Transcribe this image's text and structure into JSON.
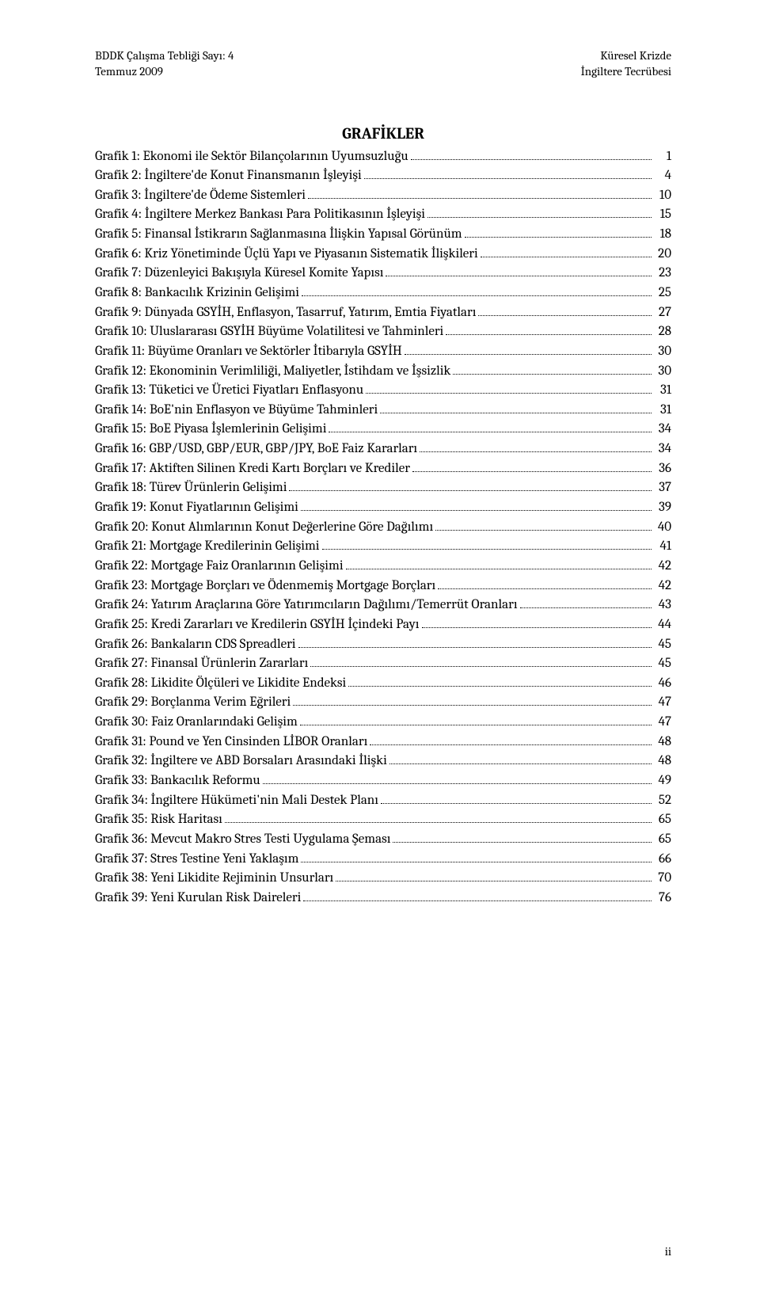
{
  "header": {
    "left_line1": "BDDK Çalışma Tebliği Sayı: 4",
    "left_line2": "Temmuz 2009",
    "right_line1": "Küresel Krizde",
    "right_line2": "İngiltere Tecrübesi"
  },
  "title": "GRAFİKLER",
  "entries": [
    {
      "label": "Grafik 1: Ekonomi ile Sektör Bilançolarının Uyumsuzluğu",
      "page": "1"
    },
    {
      "label": "Grafik 2: İngiltere'de Konut Finansmanın İşleyişi",
      "page": "4"
    },
    {
      "label": "Grafik 3: İngiltere'de Ödeme Sistemleri",
      "page": "10"
    },
    {
      "label": "Grafik 4: İngiltere Merkez Bankası Para Politikasının İşleyişi",
      "page": "15"
    },
    {
      "label": "Grafik 5: Finansal İstikrarın Sağlanmasına İlişkin Yapısal Görünüm",
      "page": "18"
    },
    {
      "label": "Grafik 6: Kriz Yönetiminde Üçlü Yapı ve Piyasanın Sistematik İlişkileri",
      "page": "20"
    },
    {
      "label": "Grafik 7: Düzenleyici Bakışıyla Küresel Komite Yapısı",
      "page": "23"
    },
    {
      "label": "Grafik 8: Bankacılık Krizinin Gelişimi",
      "page": "25"
    },
    {
      "label": "Grafik 9: Dünyada GSYİH, Enflasyon, Tasarruf, Yatırım, Emtia Fiyatları",
      "page": "27"
    },
    {
      "label": "Grafik 10: Uluslararası GSYİH Büyüme Volatilitesi ve Tahminleri",
      "page": "28"
    },
    {
      "label": "Grafik 11: Büyüme Oranları ve Sektörler İtibarıyla GSYİH",
      "page": "30"
    },
    {
      "label": "Grafik 12: Ekonominin Verimliliği, Maliyetler, İstihdam ve İşsizlik",
      "page": "30"
    },
    {
      "label": "Grafik 13: Tüketici ve Üretici Fiyatları Enflasyonu",
      "page": "31"
    },
    {
      "label": "Grafik 14: BoE'nin Enflasyon ve Büyüme Tahminleri",
      "page": "31"
    },
    {
      "label": "Grafik 15: BoE Piyasa İşlemlerinin Gelişimi",
      "page": "34"
    },
    {
      "label": "Grafik 16: GBP/USD, GBP/EUR, GBP/JPY, BoE Faiz Kararları",
      "page": "34"
    },
    {
      "label": "Grafik 17: Aktiften Silinen Kredi Kartı Borçları  ve Krediler",
      "page": "36"
    },
    {
      "label": "Grafik 18: Türev Ürünlerin Gelişimi",
      "page": "37"
    },
    {
      "label": "Grafik 19: Konut Fiyatlarının Gelişimi",
      "page": "39"
    },
    {
      "label": "Grafik 20: Konut Alımlarının Konut Değerlerine Göre Dağılımı",
      "page": "40"
    },
    {
      "label": "Grafik 21: Mortgage Kredilerinin Gelişimi",
      "page": "41"
    },
    {
      "label": "Grafik 22: Mortgage Faiz Oranlarının Gelişimi",
      "page": "42"
    },
    {
      "label": "Grafik 23: Mortgage Borçları ve Ödenmemiş Mortgage Borçları",
      "page": "42"
    },
    {
      "label": "Grafik 24: Yatırım Araçlarına Göre Yatırımcıların Dağılımı/Temerrüt Oranları",
      "page": "43"
    },
    {
      "label": "Grafik 25: Kredi Zararları ve Kredilerin GSYİH İçindeki Payı",
      "page": "44"
    },
    {
      "label": "Grafik 26: Bankaların CDS Spreadleri",
      "page": "45"
    },
    {
      "label": "Grafik 27: Finansal Ürünlerin Zararları",
      "page": "45"
    },
    {
      "label": "Grafik 28: Likidite Ölçüleri ve Likidite Endeksi",
      "page": "46"
    },
    {
      "label": "Grafik 29: Borçlanma Verim Eğrileri",
      "page": "47"
    },
    {
      "label": "Grafik 30: Faiz Oranlarındaki Gelişim",
      "page": "47"
    },
    {
      "label": "Grafik 31: Pound ve Yen Cinsinden LİBOR Oranları",
      "page": "48"
    },
    {
      "label": "Grafik 32: İngiltere ve ABD Borsaları Arasındaki İlişki",
      "page": "48"
    },
    {
      "label": "Grafik 33: Bankacılık Reformu",
      "page": "49"
    },
    {
      "label": "Grafik 34: İngiltere Hükümeti'nin Mali Destek Planı",
      "page": "52"
    },
    {
      "label": "Grafik 35: Risk Haritası",
      "page": "65"
    },
    {
      "label": "Grafik 36: Mevcut Makro Stres Testi Uygulama Şeması",
      "page": "65"
    },
    {
      "label": "Grafik 37: Stres Testine Yeni Yaklaşım",
      "page": "66"
    },
    {
      "label": "Grafik 38: Yeni Likidite Rejiminin Unsurları",
      "page": "70"
    },
    {
      "label": "Grafik 39: Yeni Kurulan Risk Daireleri",
      "page": "76"
    }
  ],
  "page_number": "ii"
}
